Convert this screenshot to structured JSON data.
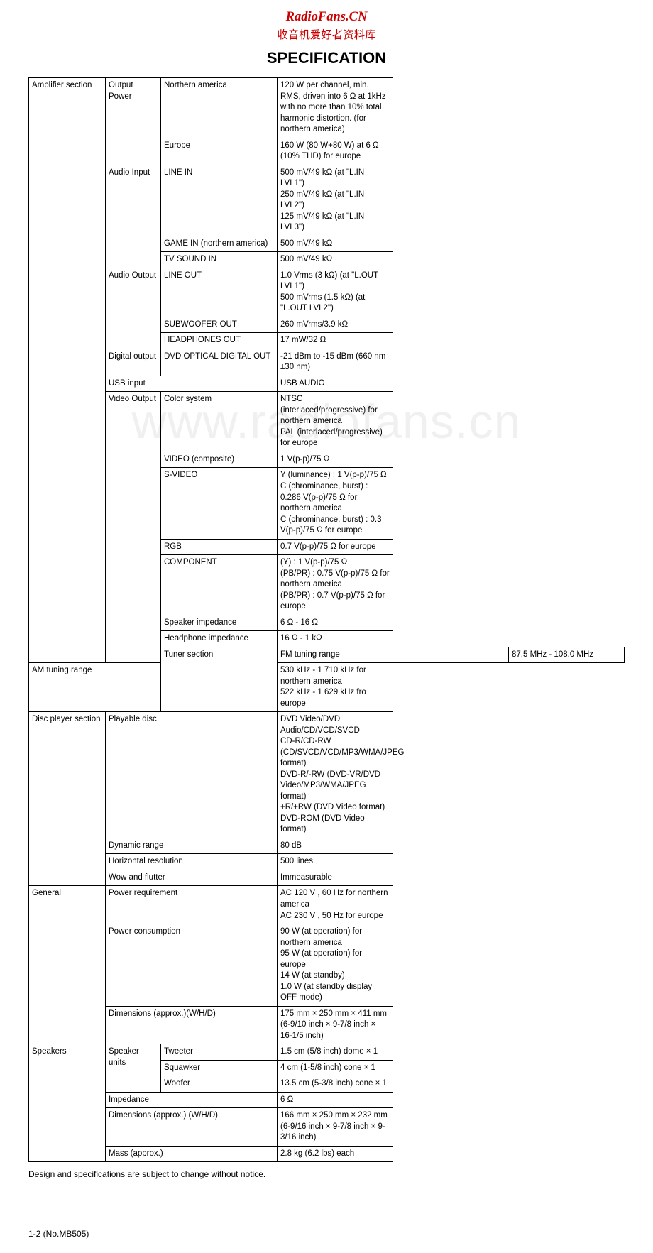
{
  "header": {
    "brand": "RadioFans.CN",
    "subtitle": "收音机爱好者资料库",
    "title": "SPECIFICATION"
  },
  "watermark": "www.radiofans.cn",
  "note": "Design and specifications are subject to change without notice.",
  "footer": "1-2 (No.MB505)",
  "colors": {
    "brand_red": "#cc0000",
    "border": "#000000",
    "text": "#000000",
    "background": "#ffffff"
  },
  "sections": {
    "amplifier": {
      "label": "Amplifier section",
      "output_power": {
        "label": "Output Power",
        "na_label": "Northern america",
        "na_value": "120 W per channel, min. RMS, driven into 6 Ω at 1kHz with no more than 10% total harmonic distortion. (for northern america)",
        "eu_label": "Europe",
        "eu_value": "160 W (80 W+80 W) at 6 Ω (10% THD) for europe"
      },
      "audio_input": {
        "label": "Audio Input",
        "line_in_label": "LINE IN",
        "line_in_value": "500 mV/49 kΩ (at \"L.IN LVL1\")\n250 mV/49 kΩ (at \"L.IN LVL2\")\n125 mV/49 kΩ (at \"L.IN LVL3\")",
        "game_in_label": "GAME IN (northern america)",
        "game_in_value": "500 mV/49 kΩ",
        "tv_sound_label": "TV SOUND IN",
        "tv_sound_value": "500 mV/49 kΩ"
      },
      "audio_output": {
        "label": "Audio Output",
        "line_out_label": "LINE OUT",
        "line_out_value": "1.0 Vrms (3 kΩ) (at \"L.OUT LVL1\")\n500 mVrms (1.5 kΩ) (at \"L.OUT LVL2\")",
        "sub_label": "SUBWOOFER OUT",
        "sub_value": "260 mVrms/3.9 kΩ",
        "hp_label": "HEADPHONES OUT",
        "hp_value": "17 mW/32 Ω"
      },
      "digital_output": {
        "label": "Digital output",
        "item_label": "DVD OPTICAL DIGITAL OUT",
        "item_value": "-21 dBm to -15 dBm (660 nm ±30 nm)"
      },
      "usb_input": {
        "label": "USB input",
        "value": "USB AUDIO"
      },
      "video_output": {
        "label": "Video Output",
        "color_system_label": "Color system",
        "color_system_value": "NTSC (interlaced/progressive) for northern america\nPAL (interlaced/progressive) for europe",
        "video_label": "VIDEO (composite)",
        "video_value": "1 V(p-p)/75 Ω",
        "svideo_label": "S-VIDEO",
        "svideo_value": "Y (luminance) : 1 V(p-p)/75 Ω\nC (chrominance, burst) : 0.286 V(p-p)/75 Ω for northern america\nC (chrominance, burst) : 0.3 V(p-p)/75 Ω for europe",
        "rgb_label": "RGB",
        "rgb_value": "0.7 V(p-p)/75 Ω for europe",
        "component_label": "COMPONENT",
        "component_value": "(Y) : 1 V(p-p)/75 Ω\n(PB/PR) : 0.75 V(p-p)/75 Ω for northern america\n(PB/PR) : 0.7 V(p-p)/75 Ω for europe",
        "spk_imp_label": "Speaker impedance",
        "spk_imp_value": "6 Ω - 16 Ω",
        "hp_imp_label": "Headphone impedance",
        "hp_imp_value": "16 Ω - 1 kΩ"
      }
    },
    "tuner": {
      "label": "Tuner section",
      "fm_label": "FM tuning range",
      "fm_value": "87.5 MHz - 108.0 MHz",
      "am_label": "AM tuning range",
      "am_value": "530 kHz - 1 710 kHz for northern america\n522 kHz - 1 629 kHz fro europe"
    },
    "disc": {
      "label": "Disc player section",
      "playable_label": "Playable disc",
      "playable_value": "DVD Video/DVD Audio/CD/VCD/SVCD\nCD-R/CD-RW (CD/SVCD/VCD/MP3/WMA/JPEG format)\nDVD-R/-RW (DVD-VR/DVD Video/MP3/WMA/JPEG format)\n+R/+RW (DVD Video format)\nDVD-ROM (DVD Video format)",
      "dyn_label": "Dynamic range",
      "dyn_value": "80 dB",
      "hres_label": "Horizontal resolution",
      "hres_value": "500 lines",
      "wow_label": "Wow and flutter",
      "wow_value": "Immeasurable"
    },
    "general": {
      "label": "General",
      "power_req_label": "Power requirement",
      "power_req_value": "AC 120 V , 60 Hz for northern america\nAC 230 V , 50 Hz for europe",
      "power_cons_label": "Power consumption",
      "power_cons_value": "90 W (at operation) for northern america\n95 W (at operation) for europe\n14 W (at standby)\n1.0 W (at standby display OFF mode)",
      "dim_label": "Dimensions (approx.)(W/H/D)",
      "dim_value": "175 mm × 250 mm × 411 mm (6-9/10 inch × 9-7/8 inch × 16-1/5 inch)"
    },
    "speakers": {
      "label": "Speakers",
      "units_label": "Speaker units",
      "tweeter_label": "Tweeter",
      "tweeter_value": "1.5 cm (5/8 inch) dome × 1",
      "squawker_label": "Squawker",
      "squawker_value": "4 cm (1-5/8 inch) cone × 1",
      "woofer_label": "Woofer",
      "woofer_value": "13.5 cm (5-3/8 inch) cone × 1",
      "imp_label": "Impedance",
      "imp_value": "6 Ω",
      "dim_label": "Dimensions (approx.) (W/H/D)",
      "dim_value": "166 mm × 250 mm × 232 mm (6-9/16 inch × 9-7/8 inch × 9-3/16 inch)",
      "mass_label": "Mass (approx.)",
      "mass_value": "2.8 kg (6.2 lbs) each"
    }
  }
}
